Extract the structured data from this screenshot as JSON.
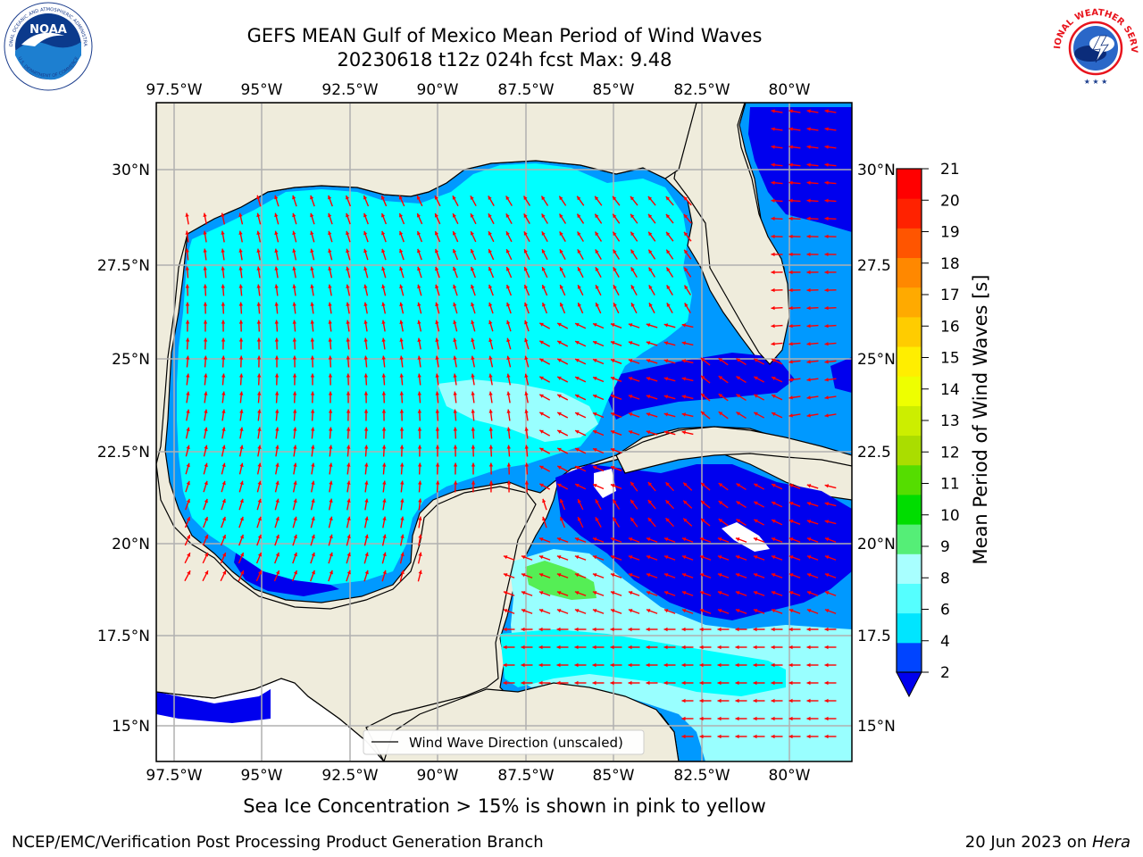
{
  "header": {
    "title_line1": "GEFS MEAN Gulf of Mexico Mean Period of Wind Waves",
    "title_line2": "20230618 t12z 024h fcst   Max: 9.48"
  },
  "logos": {
    "noaa": {
      "icon": "noaa-logo",
      "ring_text": "NATIONAL OCEANIC AND ATMOSPHERIC ADMINISTRATION",
      "bottom_text": "U.S. DEPARTMENT OF COMMERCE",
      "center_text": "NOAA"
    },
    "nws": {
      "icon": "nws-logo",
      "ring_text": "NATIONAL WEATHER SERVICE"
    }
  },
  "map": {
    "lon_labels": [
      "97.5°W",
      "95°W",
      "92.5°W",
      "90°W",
      "87.5°W",
      "85°W",
      "82.5°W",
      "80°W"
    ],
    "lat_labels_left": [
      "30°N",
      "27.5°N",
      "25°N",
      "22.5°N",
      "20°N",
      "17.5°N",
      "15°N"
    ],
    "lat_labels_right": [
      "30°N",
      "27.5",
      "25°N",
      "22.5",
      "20°N",
      "17.5",
      "15°N"
    ],
    "legend_label": "Wind Wave Direction (unscaled)",
    "colors": {
      "land": "#efecdc",
      "lightest": "#99ffff",
      "cyan": "#00ffff",
      "blue_mid": "#0099ff",
      "blue": "#0055ff",
      "deep_blue": "#0000ee",
      "green": "#55ee55",
      "arrow": "#ff0000"
    }
  },
  "colorbar": {
    "label": "Mean Period of Wind Waves [s]",
    "ticks": [
      "21",
      "20",
      "19",
      "18",
      "17",
      "16",
      "15",
      "14",
      "13",
      "12",
      "11",
      "10",
      "9",
      "8",
      "6",
      "4",
      "2"
    ],
    "colors": [
      "#0044ff",
      "#00e5ff",
      "#55ffff",
      "#a8ffff",
      "#55ee77",
      "#00dd00",
      "#55dd00",
      "#aadd00",
      "#ccee00",
      "#eeff00",
      "#ffee00",
      "#ffcc00",
      "#ffaa00",
      "#ff8800",
      "#ff5500",
      "#ff2200",
      "#ff0000"
    ]
  },
  "footer": {
    "subtitle": "Sea Ice Concentration > 15% is shown in pink to yellow",
    "credit": "NCEP/EMC/Verification Post Processing Product Generation Branch",
    "date": "20 Jun 2023 on ",
    "host": "Hera"
  }
}
